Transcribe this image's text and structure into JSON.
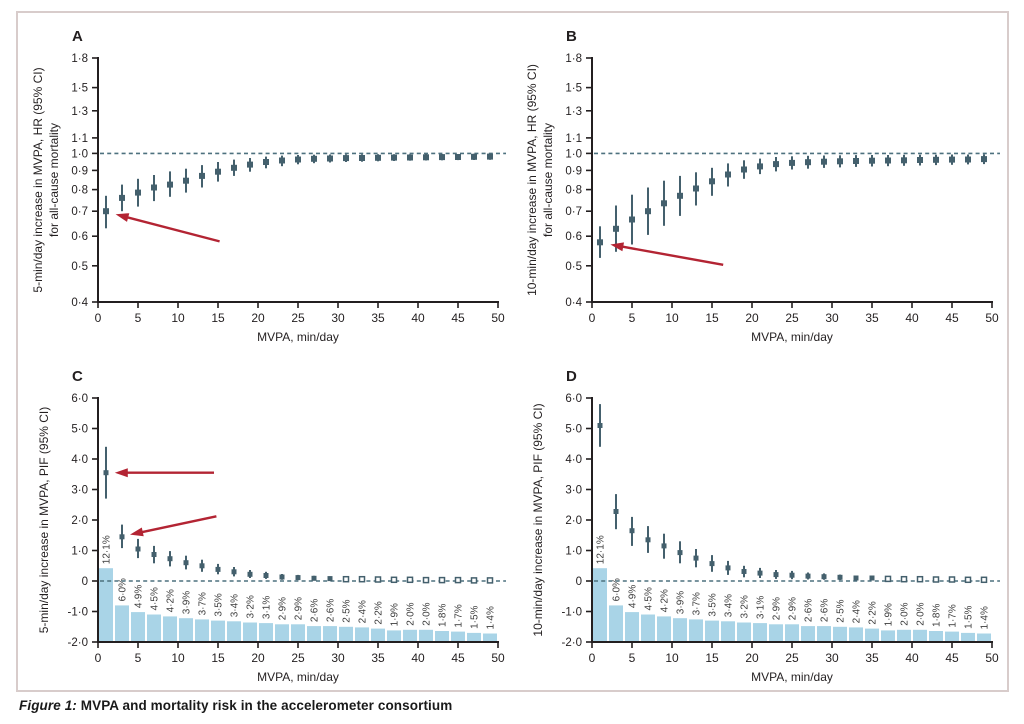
{
  "caption": {
    "prefix": "Figure 1:",
    "text": " MVPA and mortality risk in the accelerometer consortium"
  },
  "colors": {
    "point": "#44606d",
    "bar": "#a9d4e7",
    "arrow": "#b32433",
    "refline": "#4d717f",
    "axis": "#231f20",
    "text": "#231f20",
    "pct_text": "#3d3d3d",
    "frame_border": "#d8cccb"
  },
  "chart_data": {
    "type": "multi-panel",
    "panels": [
      {
        "id": "A",
        "panel_label": "A",
        "type": "scatter",
        "ylabel_lines": [
          "5-min/day increase in MVPA, HR (95% CI)",
          "for all-cause mortality"
        ],
        "xlabel": "MVPA, min/day",
        "yscale": "log",
        "ylim": [
          0.4,
          1.8
        ],
        "yticks": [
          [
            1.8,
            "1·8"
          ],
          [
            1.5,
            "1·5"
          ],
          [
            1.3,
            "1·3"
          ],
          [
            1.1,
            "1·1"
          ],
          [
            1.0,
            "1·0"
          ],
          [
            0.9,
            "0·9"
          ],
          [
            0.8,
            "0·8"
          ],
          [
            0.7,
            "0·7"
          ],
          [
            0.6,
            "0·6"
          ],
          [
            0.5,
            "0·5"
          ],
          [
            0.4,
            "0·4"
          ]
        ],
        "xlim": [
          0,
          50
        ],
        "xticks": [
          [
            0,
            "0"
          ],
          [
            5,
            "5"
          ],
          [
            10,
            "10"
          ],
          [
            15,
            "15"
          ],
          [
            20,
            "20"
          ],
          [
            25,
            "25"
          ],
          [
            30,
            "30"
          ],
          [
            35,
            "35"
          ],
          [
            40,
            "40"
          ],
          [
            45,
            "45"
          ],
          [
            50,
            "50"
          ]
        ],
        "refline": 1.0,
        "x": [
          1,
          3,
          5,
          7,
          9,
          11,
          13,
          15,
          17,
          19,
          21,
          23,
          25,
          27,
          29,
          31,
          33,
          35,
          37,
          39,
          41,
          43,
          45,
          47,
          49
        ],
        "y": [
          0.7,
          0.76,
          0.785,
          0.81,
          0.825,
          0.845,
          0.87,
          0.893,
          0.915,
          0.933,
          0.948,
          0.957,
          0.963,
          0.967,
          0.969,
          0.971,
          0.972,
          0.973,
          0.974,
          0.975,
          0.976,
          0.977,
          0.978,
          0.979,
          0.98
        ],
        "lo": [
          0.63,
          0.7,
          0.72,
          0.745,
          0.765,
          0.785,
          0.81,
          0.84,
          0.87,
          0.893,
          0.912,
          0.924,
          0.935,
          0.941,
          0.945,
          0.948,
          0.95,
          0.952,
          0.954,
          0.956,
          0.957,
          0.958,
          0.959,
          0.96,
          0.961
        ],
        "hi": [
          0.77,
          0.825,
          0.855,
          0.875,
          0.895,
          0.91,
          0.93,
          0.948,
          0.962,
          0.972,
          0.98,
          0.986,
          0.99,
          0.992,
          0.993,
          0.994,
          0.994,
          0.995,
          0.995,
          0.995,
          0.996,
          0.996,
          0.996,
          0.997,
          0.997
        ],
        "arrows": [
          {
            "from": [
              15.2,
              0.581
            ],
            "to": [
              2.2,
              0.687
            ]
          }
        ]
      },
      {
        "id": "B",
        "panel_label": "B",
        "type": "scatter",
        "ylabel_lines": [
          "10-min/day increase in MVPA, HR (95% CI)",
          "for all-cause mortality"
        ],
        "xlabel": "MVPA, min/day",
        "yscale": "log",
        "ylim": [
          0.4,
          1.8
        ],
        "yticks": [
          [
            1.8,
            "1·8"
          ],
          [
            1.5,
            "1·5"
          ],
          [
            1.3,
            "1·3"
          ],
          [
            1.1,
            "1·1"
          ],
          [
            1.0,
            "1·0"
          ],
          [
            0.9,
            "0·9"
          ],
          [
            0.8,
            "0·8"
          ],
          [
            0.7,
            "0·7"
          ],
          [
            0.6,
            "0·6"
          ],
          [
            0.5,
            "0·5"
          ],
          [
            0.4,
            "0·4"
          ]
        ],
        "xlim": [
          0,
          50
        ],
        "xticks": [
          [
            0,
            "0"
          ],
          [
            5,
            "5"
          ],
          [
            10,
            "10"
          ],
          [
            15,
            "15"
          ],
          [
            20,
            "20"
          ],
          [
            25,
            "25"
          ],
          [
            30,
            "30"
          ],
          [
            35,
            "35"
          ],
          [
            40,
            "40"
          ],
          [
            45,
            "45"
          ],
          [
            50,
            "50"
          ]
        ],
        "refline": 1.0,
        "x": [
          1,
          3,
          5,
          7,
          9,
          11,
          13,
          15,
          17,
          19,
          21,
          23,
          25,
          27,
          29,
          31,
          33,
          35,
          37,
          39,
          41,
          43,
          45,
          47,
          49
        ],
        "y": [
          0.578,
          0.628,
          0.665,
          0.7,
          0.735,
          0.77,
          0.805,
          0.842,
          0.878,
          0.905,
          0.923,
          0.936,
          0.943,
          0.947,
          0.95,
          0.952,
          0.954,
          0.956,
          0.957,
          0.958,
          0.96,
          0.961,
          0.962,
          0.963,
          0.965
        ],
        "lo": [
          0.525,
          0.545,
          0.57,
          0.605,
          0.64,
          0.68,
          0.725,
          0.77,
          0.815,
          0.855,
          0.88,
          0.895,
          0.905,
          0.91,
          0.914,
          0.917,
          0.92,
          0.922,
          0.924,
          0.926,
          0.928,
          0.93,
          0.932,
          0.934,
          0.936
        ],
        "hi": [
          0.638,
          0.725,
          0.775,
          0.81,
          0.845,
          0.87,
          0.89,
          0.915,
          0.94,
          0.958,
          0.968,
          0.978,
          0.982,
          0.985,
          0.987,
          0.988,
          0.989,
          0.99,
          0.99,
          0.991,
          0.992,
          0.992,
          0.993,
          0.993,
          0.994
        ],
        "arrows": [
          {
            "from": [
              16.4,
              0.503
            ],
            "to": [
              2.3,
              0.57
            ]
          }
        ]
      },
      {
        "id": "C",
        "panel_label": "C",
        "type": "scatter-with-bars",
        "ylabel_lines": [
          "5-min/day increase in MVPA, PIF (95% CI)"
        ],
        "xlabel": "MVPA, min/day",
        "yscale": "linear",
        "ylim": [
          -2.0,
          6.0
        ],
        "yticks": [
          [
            6,
            "6·0"
          ],
          [
            5,
            "5·0"
          ],
          [
            4,
            "4·0"
          ],
          [
            3,
            "3·0"
          ],
          [
            2,
            "2·0"
          ],
          [
            1,
            "1·0"
          ],
          [
            0,
            "0"
          ],
          [
            -1,
            "-1·0"
          ],
          [
            -2,
            "-2·0"
          ]
        ],
        "xlim": [
          0,
          50
        ],
        "xticks": [
          [
            0,
            "0"
          ],
          [
            5,
            "5"
          ],
          [
            10,
            "10"
          ],
          [
            15,
            "15"
          ],
          [
            20,
            "20"
          ],
          [
            25,
            "25"
          ],
          [
            30,
            "30"
          ],
          [
            35,
            "35"
          ],
          [
            40,
            "40"
          ],
          [
            45,
            "45"
          ],
          [
            50,
            "50"
          ]
        ],
        "refline": 0,
        "x": [
          1,
          3,
          5,
          7,
          9,
          11,
          13,
          15,
          17,
          19,
          21,
          23,
          25,
          27,
          29,
          31,
          33,
          35,
          37,
          39,
          41,
          43,
          45,
          47,
          49
        ],
        "y": [
          3.55,
          1.45,
          1.05,
          0.87,
          0.73,
          0.6,
          0.5,
          0.38,
          0.3,
          0.22,
          0.18,
          0.13,
          0.11,
          0.09,
          0.08,
          0.06,
          0.06,
          0.05,
          0.04,
          0.04,
          0.03,
          0.03,
          0.03,
          0.02,
          0.02
        ],
        "lo": [
          2.7,
          1.08,
          0.75,
          0.58,
          0.48,
          0.38,
          0.3,
          0.22,
          0.15,
          0.1,
          0.07,
          0.04,
          0.03,
          0.02,
          0.02,
          0.01,
          0.01,
          0.01,
          0.01,
          0.0,
          0.0,
          0.0,
          0.0,
          0.0,
          0.0
        ],
        "hi": [
          4.4,
          1.85,
          1.38,
          1.15,
          0.98,
          0.83,
          0.7,
          0.56,
          0.46,
          0.36,
          0.3,
          0.23,
          0.2,
          0.17,
          0.15,
          0.12,
          0.11,
          0.1,
          0.09,
          0.08,
          0.07,
          0.07,
          0.06,
          0.05,
          0.05
        ],
        "bars": {
          "pct": [
            12.1,
            6.0,
            4.9,
            4.5,
            4.2,
            3.9,
            3.7,
            3.5,
            3.4,
            3.2,
            3.1,
            2.9,
            2.9,
            2.6,
            2.6,
            2.5,
            2.4,
            2.2,
            1.9,
            2.0,
            2.0,
            1.8,
            1.7,
            1.5,
            1.4
          ],
          "labels": [
            "12·1%",
            "6·0%",
            "4·9%",
            "4·5%",
            "4·2%",
            "3·9%",
            "3·7%",
            "3·5%",
            "3·4%",
            "3·2%",
            "3·1%",
            "2·9%",
            "2·9%",
            "2·6%",
            "2·6%",
            "2·5%",
            "2·4%",
            "2·2%",
            "1·9%",
            "2·0%",
            "2·0%",
            "1·8%",
            "1·7%",
            "1·5%",
            "1·4%"
          ],
          "base": -2.0,
          "y_per_pct": 0.2,
          "width": 1.75
        },
        "arrows": [
          {
            "from": [
              14.5,
              3.55
            ],
            "to": [
              2.1,
              3.55
            ]
          },
          {
            "from": [
              14.8,
              2.12
            ],
            "to": [
              4.0,
              1.52
            ]
          }
        ]
      },
      {
        "id": "D",
        "panel_label": "D",
        "type": "scatter-with-bars",
        "ylabel_lines": [
          "10-min/day increase in MVPA, PIF (95% CI)"
        ],
        "xlabel": "MVPA, min/day",
        "yscale": "linear",
        "ylim": [
          -2.0,
          6.0
        ],
        "yticks": [
          [
            6,
            "6·0"
          ],
          [
            5,
            "5·0"
          ],
          [
            4,
            "4·0"
          ],
          [
            3,
            "3·0"
          ],
          [
            2,
            "2·0"
          ],
          [
            1,
            "1·0"
          ],
          [
            0,
            "0"
          ],
          [
            -1,
            "-1·0"
          ],
          [
            -2,
            "-2·0"
          ]
        ],
        "xlim": [
          0,
          50
        ],
        "xticks": [
          [
            0,
            "0"
          ],
          [
            5,
            "5"
          ],
          [
            10,
            "10"
          ],
          [
            15,
            "15"
          ],
          [
            20,
            "20"
          ],
          [
            25,
            "25"
          ],
          [
            30,
            "30"
          ],
          [
            35,
            "35"
          ],
          [
            40,
            "40"
          ],
          [
            45,
            "45"
          ],
          [
            50,
            "50"
          ]
        ],
        "refline": 0,
        "x": [
          1,
          3,
          5,
          7,
          9,
          11,
          13,
          15,
          17,
          19,
          21,
          23,
          25,
          27,
          29,
          31,
          33,
          35,
          37,
          39,
          41,
          43,
          45,
          47,
          49
        ],
        "y": [
          5.1,
          2.28,
          1.65,
          1.35,
          1.15,
          0.93,
          0.75,
          0.57,
          0.43,
          0.31,
          0.26,
          0.21,
          0.19,
          0.16,
          0.14,
          0.12,
          0.1,
          0.1,
          0.07,
          0.06,
          0.06,
          0.05,
          0.05,
          0.04,
          0.04
        ],
        "lo": [
          4.4,
          1.7,
          1.15,
          0.92,
          0.73,
          0.58,
          0.45,
          0.3,
          0.2,
          0.12,
          0.1,
          0.07,
          0.06,
          0.05,
          0.04,
          0.03,
          0.02,
          0.02,
          0.01,
          0.01,
          0.01,
          0.01,
          0.0,
          0.0,
          0.0
        ],
        "hi": [
          5.8,
          2.85,
          2.1,
          1.8,
          1.55,
          1.3,
          1.05,
          0.85,
          0.66,
          0.5,
          0.43,
          0.36,
          0.33,
          0.28,
          0.25,
          0.21,
          0.18,
          0.18,
          0.14,
          0.12,
          0.12,
          0.1,
          0.1,
          0.09,
          0.08
        ],
        "bars": {
          "pct": [
            12.1,
            6.0,
            4.9,
            4.5,
            4.2,
            3.9,
            3.7,
            3.5,
            3.4,
            3.2,
            3.1,
            2.9,
            2.9,
            2.6,
            2.6,
            2.5,
            2.4,
            2.2,
            1.9,
            2.0,
            2.0,
            1.8,
            1.7,
            1.5,
            1.4
          ],
          "labels": [
            "12·1%",
            "6·0%",
            "4·9%",
            "4·5%",
            "4·2%",
            "3·9%",
            "3·7%",
            "3·5%",
            "3·4%",
            "3·2%",
            "3·1%",
            "2·9%",
            "2·9%",
            "2·6%",
            "2·6%",
            "2·5%",
            "2·4%",
            "2·2%",
            "1·9%",
            "2·0%",
            "2·0%",
            "1·8%",
            "1·7%",
            "1·5%",
            "1·4%"
          ],
          "base": -2.0,
          "y_per_pct": 0.2,
          "width": 1.75
        },
        "arrows": []
      }
    ]
  }
}
